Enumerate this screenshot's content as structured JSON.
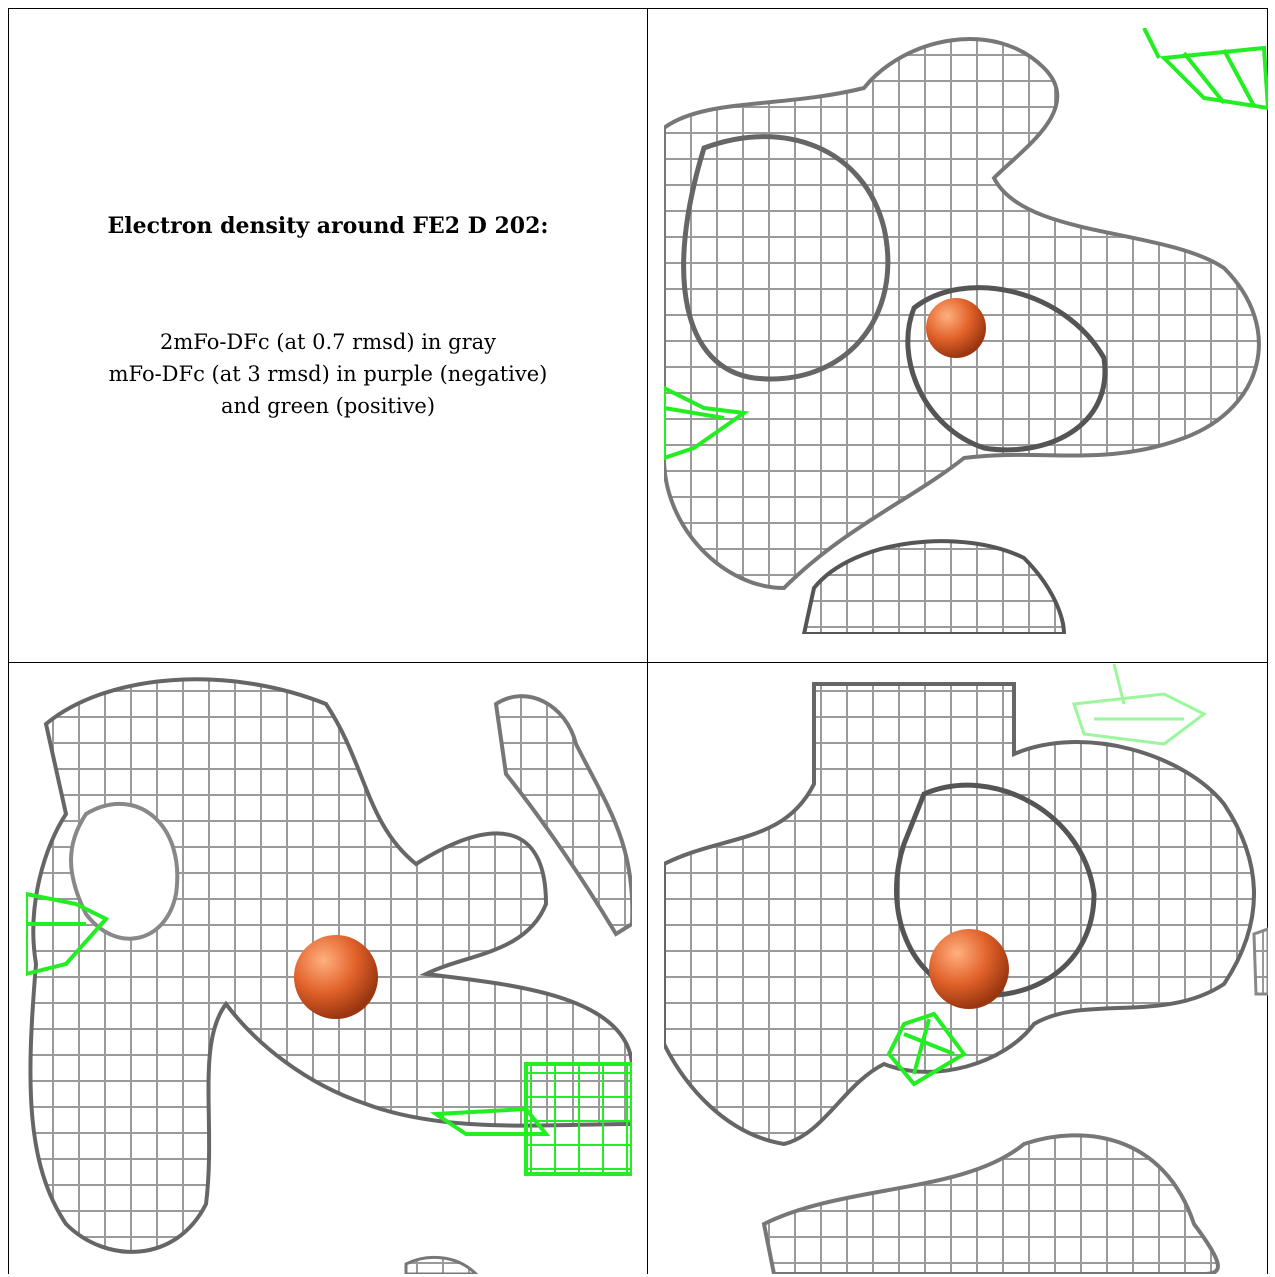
{
  "caption": {
    "title": "Electron density around FE2 D 202:",
    "line1": "2mFo-DFc (at 0.7 rmsd) in gray",
    "line2": "mFo-DFc (at 3 rmsd) in purple (negative)",
    "line3": "and green (positive)"
  },
  "colors": {
    "map_2fofc": "#9a9a9a",
    "map_fofc_positive": "#22ee22",
    "map_fofc_negative": "#9933cc",
    "iron_atom": "#e2622a"
  },
  "panels": [
    {
      "name": "view-1",
      "atom": "FE2 D 202"
    },
    {
      "name": "view-2",
      "atom": "FE2 D 202"
    },
    {
      "name": "view-3",
      "atom": "FE2 D 202"
    }
  ]
}
